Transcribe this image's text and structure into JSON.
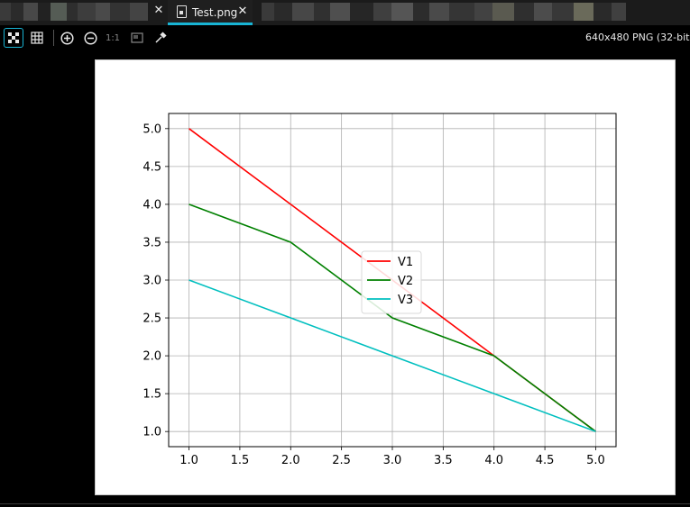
{
  "tabs": [
    {
      "label": "",
      "active": false
    },
    {
      "label": "Test.png",
      "active": true
    }
  ],
  "toolbar": {
    "one_to_one": "1:1",
    "image_info": "640x480 PNG (32-bit"
  },
  "icons": [
    "fit-icon",
    "grid-icon",
    "zoom-in-icon",
    "zoom-out-icon",
    "actual-size-icon",
    "background-icon",
    "eyedropper-icon"
  ],
  "colors": {
    "accent": "#18b4d4",
    "v1": "#ff0000",
    "v2": "#008000",
    "v3": "#00bfbf"
  },
  "chart_data": {
    "type": "line",
    "title": "",
    "xlabel": "",
    "ylabel": "",
    "x": [
      1,
      2,
      3,
      4,
      5
    ],
    "xlim": [
      0.8,
      5.2
    ],
    "ylim": [
      0.8,
      5.2
    ],
    "xticks": [
      "1.0",
      "1.5",
      "2.0",
      "2.5",
      "3.0",
      "3.5",
      "4.0",
      "4.5",
      "5.0"
    ],
    "yticks": [
      "1.0",
      "1.5",
      "2.0",
      "2.5",
      "3.0",
      "3.5",
      "4.0",
      "4.5",
      "5.0"
    ],
    "grid": true,
    "legend": "center",
    "series": [
      {
        "name": "V1",
        "values": [
          5,
          4,
          3,
          2,
          1
        ],
        "color": "#ff0000"
      },
      {
        "name": "V2",
        "values": [
          4,
          3.5,
          2.5,
          2,
          1
        ],
        "color": "#008000"
      },
      {
        "name": "V3",
        "values": [
          3,
          2.5,
          2,
          1.5,
          1
        ],
        "color": "#00bfbf"
      }
    ]
  }
}
